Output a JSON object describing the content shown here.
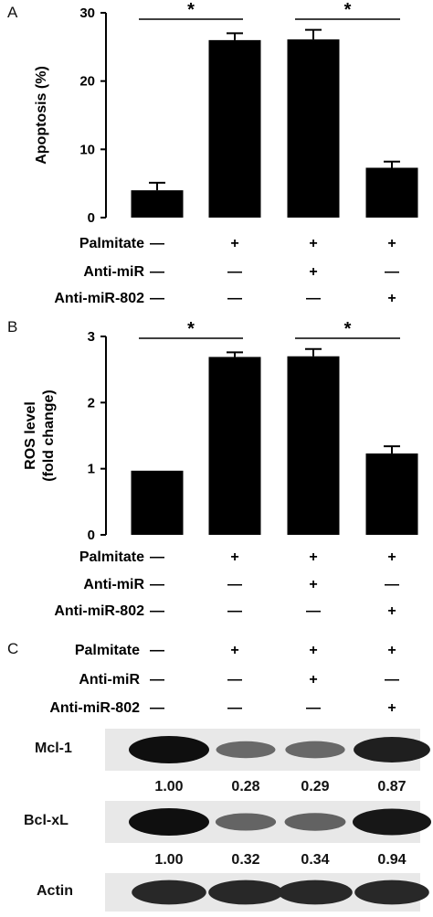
{
  "panels": {
    "a": {
      "letter": "A"
    },
    "b": {
      "letter": "B"
    },
    "c": {
      "letter": "C"
    }
  },
  "chart_data": [
    {
      "type": "bar",
      "ylabel": "Apoptosis (%)",
      "ylim": [
        0,
        30
      ],
      "yticks": [
        0,
        10,
        20,
        30
      ],
      "categories": [
        "1",
        "2",
        "3",
        "4"
      ],
      "values": [
        4.0,
        26.0,
        26.1,
        7.3
      ],
      "errors": [
        1.1,
        1.0,
        1.4,
        0.9
      ],
      "significance": [
        {
          "from": 0,
          "to": 1,
          "label": "*"
        },
        {
          "from": 2,
          "to": 3,
          "label": "*"
        }
      ],
      "conditions": [
        {
          "name": "Palmitate",
          "signs": [
            "—",
            "+",
            "+",
            "+"
          ]
        },
        {
          "name": "Anti-miR",
          "signs": [
            "—",
            "—",
            "+",
            "—"
          ]
        },
        {
          "name": "Anti-miR-802",
          "signs": [
            "—",
            "—",
            "—",
            "+"
          ]
        }
      ]
    },
    {
      "type": "bar",
      "ylabel": [
        "ROS level",
        "(fold change)"
      ],
      "ylim": [
        0,
        3
      ],
      "yticks": [
        0,
        1,
        2,
        3
      ],
      "categories": [
        "1",
        "2",
        "3",
        "4"
      ],
      "values": [
        0.97,
        2.69,
        2.7,
        1.23
      ],
      "errors": [
        0,
        0.07,
        0.11,
        0.11
      ],
      "significance": [
        {
          "from": 0,
          "to": 1,
          "label": "*"
        },
        {
          "from": 2,
          "to": 3,
          "label": "*"
        }
      ],
      "conditions": [
        {
          "name": "Palmitate",
          "signs": [
            "—",
            "+",
            "+",
            "+"
          ]
        },
        {
          "name": "Anti-miR",
          "signs": [
            "—",
            "—",
            "+",
            "—"
          ]
        },
        {
          "name": "Anti-miR-802",
          "signs": [
            "—",
            "—",
            "—",
            "+"
          ]
        }
      ]
    }
  ],
  "western": {
    "conditions": [
      {
        "name": "Palmitate",
        "signs": [
          "—",
          "+",
          "+",
          "+"
        ]
      },
      {
        "name": "Anti-miR",
        "signs": [
          "—",
          "—",
          "+",
          "—"
        ]
      },
      {
        "name": "Anti-miR-802",
        "signs": [
          "—",
          "—",
          "—",
          "+"
        ]
      }
    ],
    "blots": [
      {
        "label": "Mcl-1",
        "band_intensity": [
          1.0,
          0.28,
          0.29,
          0.87
        ],
        "quant": [
          "1.00",
          "0.28",
          "0.29",
          "0.87"
        ]
      },
      {
        "label": "Bcl-xL",
        "band_intensity": [
          1.0,
          0.32,
          0.34,
          0.94
        ],
        "quant": [
          "1.00",
          "0.32",
          "0.34",
          "0.94"
        ]
      },
      {
        "label": "Actin",
        "band_intensity": [
          0.8,
          0.8,
          0.8,
          0.8
        ]
      }
    ]
  }
}
